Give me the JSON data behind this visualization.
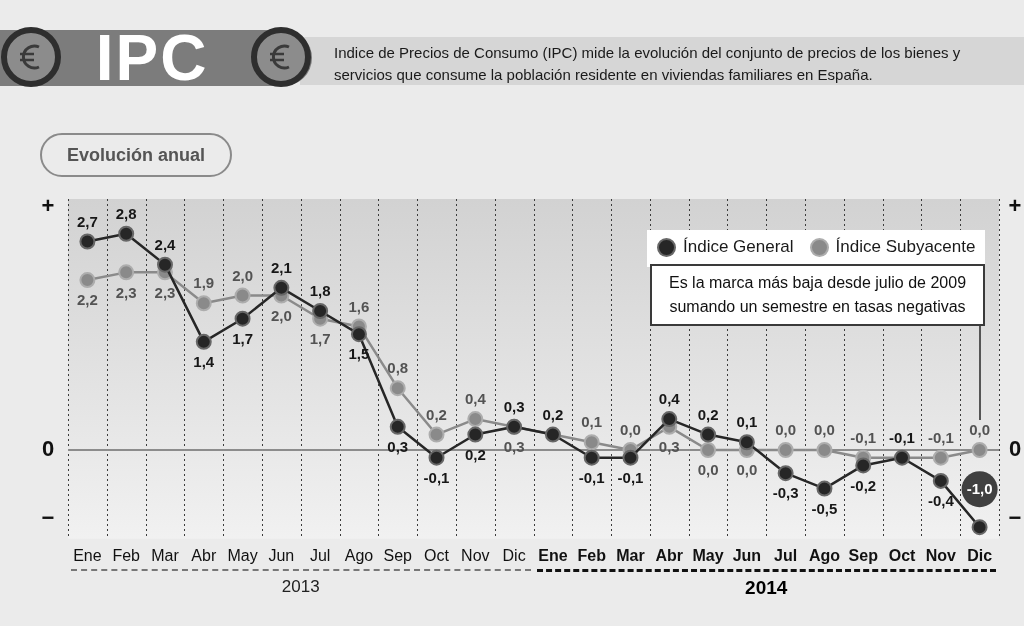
{
  "chart_data": {
    "type": "line",
    "title": "IPC",
    "subtitle": "Indice de Precios de Consumo (IPC) mide la evolución del conjunto de precios de los bienes y servicios que consume la población residente en viviendas familiares en España.",
    "categories": [
      "Ene",
      "Feb",
      "Mar",
      "Abr",
      "May",
      "Jun",
      "Jul",
      "Ago",
      "Sep",
      "Oct",
      "Nov",
      "Dic",
      "Ene",
      "Feb",
      "Mar",
      "Abr",
      "May",
      "Jun",
      "Jul",
      "Ago",
      "Sep",
      "Oct",
      "Nov",
      "Dic"
    ],
    "series": [
      {
        "name": "Índice General",
        "color": "#262626",
        "values": [
          2.7,
          2.8,
          2.4,
          1.4,
          1.7,
          2.1,
          1.8,
          1.5,
          0.3,
          -0.1,
          0.2,
          0.3,
          0.2,
          -0.1,
          -0.1,
          0.4,
          0.2,
          0.1,
          -0.3,
          -0.5,
          -0.2,
          -0.1,
          -0.4,
          -1.0
        ],
        "value_labels": [
          "2,7",
          "2,8",
          "2,4",
          "1,4",
          "1,7",
          "2,1",
          "1,8",
          "1,5",
          "0,3",
          "-0,1",
          "0,2",
          "0,3",
          "0,2",
          "-0,1",
          "-0,1",
          "0,4",
          "0,2",
          "0,1",
          "-0,3",
          "-0,5",
          "-0,2",
          "-0,1",
          "-0,4",
          "-1,0"
        ]
      },
      {
        "name": "Índice Subyacente",
        "color": "#8a8a8a",
        "values": [
          2.2,
          2.3,
          2.3,
          1.9,
          2.0,
          2.0,
          1.7,
          1.6,
          0.8,
          0.2,
          0.4,
          0.3,
          null,
          0.1,
          0.0,
          0.3,
          0.0,
          0.0,
          0.0,
          0.0,
          -0.1,
          null,
          -0.1,
          0.0
        ],
        "value_labels": [
          "2,2",
          "2,3",
          "2,3",
          "1,9",
          "2,0",
          "2,0",
          "1,7",
          "1,6",
          "0,8",
          "0,2",
          "0,4",
          "0,3",
          null,
          "0,1",
          "0,0",
          "0,3",
          "0,0",
          "0,0",
          "0,0",
          "0,0",
          "-0,1",
          null,
          "-0,1",
          "0,0"
        ]
      }
    ],
    "ylim": [
      -1.15,
      3.25
    ],
    "grid": "x",
    "legend": "top right",
    "marker": "circle",
    "line_style": "solid",
    "ref_lines": [
      {
        "axis": "y",
        "value": 0,
        "label": "0",
        "color": "#8c8c8c"
      }
    ],
    "annotations": [
      "Evolución anual",
      "Es la marca más baja desde julio de 2009 sumando un semestre en tasas negativas",
      "+",
      "−",
      "2013",
      "2014"
    ]
  }
}
